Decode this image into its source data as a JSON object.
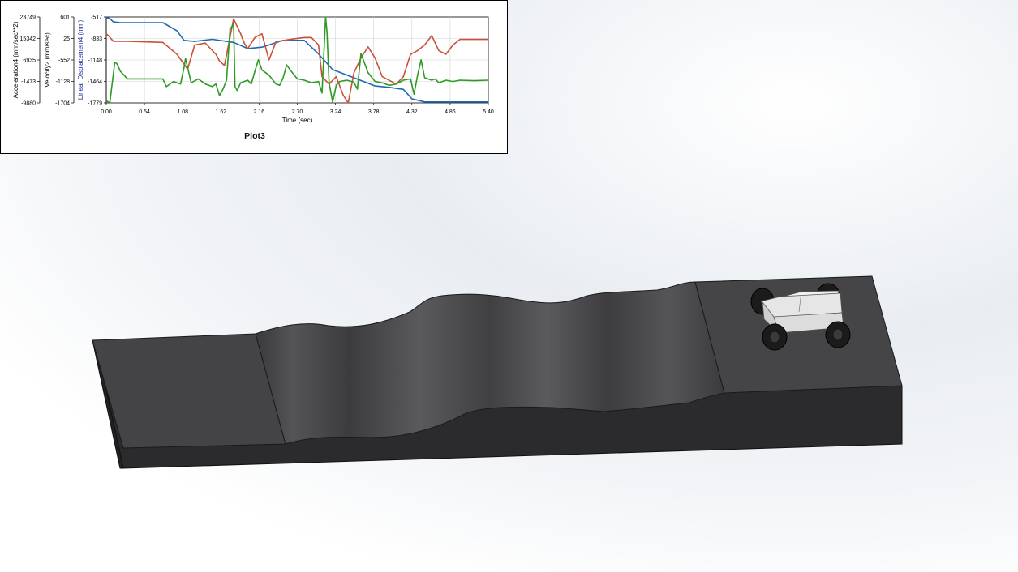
{
  "plot": {
    "title": "Plot3",
    "colors": {
      "accel": "#2e9a23",
      "velocity": "#c9513a",
      "displacement": "#1f68b4"
    },
    "chart_data": {
      "type": "line",
      "title": "Plot3",
      "xlabel": "Time (sec)",
      "xlim": [
        0,
        5.4
      ],
      "x_ticks": [
        "0.00",
        "0.54",
        "1.08",
        "1.62",
        "2.16",
        "2.70",
        "3.24",
        "3.78",
        "4.32",
        "4.86",
        "5.40"
      ],
      "grid": true,
      "axes": [
        {
          "label": "Acceleration4 (mm/sec**2)",
          "ticks": [
            "23749",
            "15342",
            "6935",
            "-1473",
            "-9880"
          ],
          "ylim": [
            -9880,
            23749
          ]
        },
        {
          "label": "Velocity2 (mm/sec)",
          "ticks": [
            "601",
            "25",
            "-552",
            "-1128",
            "-1704"
          ],
          "ylim": [
            -1704,
            601
          ]
        },
        {
          "label": "Linear Displacement4 (mm)",
          "ticks": [
            "-517",
            "-833",
            "-1148",
            "-1464",
            "-1779"
          ],
          "ylim": [
            -1779,
            -517
          ]
        }
      ],
      "series": [
        {
          "axis": 2,
          "x": [
            0,
            0.05,
            0.1,
            0.2,
            0.5,
            0.8,
            1.0,
            1.1,
            1.25,
            1.5,
            1.8,
            2.0,
            2.2,
            2.5,
            2.8,
            3.0,
            3.2,
            3.5,
            3.8,
            4.0,
            4.2,
            4.32,
            4.5,
            4.8,
            5.1,
            5.4
          ],
          "y": [
            -525,
            -540,
            -590,
            -600,
            -600,
            -600,
            -720,
            -860,
            -875,
            -845,
            -890,
            -980,
            -960,
            -860,
            -860,
            -1060,
            -1290,
            -1410,
            -1530,
            -1550,
            -1580,
            -1720,
            -1765,
            -1765,
            -1765,
            -1765
          ]
        },
        {
          "axis": 1,
          "x": [
            0,
            0.03,
            0.1,
            0.3,
            0.8,
            1.0,
            1.15,
            1.25,
            1.4,
            1.55,
            1.6,
            1.67,
            1.8,
            1.9,
            1.95,
            2.0,
            2.1,
            2.2,
            2.3,
            2.4,
            2.6,
            2.8,
            2.9,
            3.0,
            3.05,
            3.15,
            3.25,
            3.35,
            3.42,
            3.5,
            3.6,
            3.7,
            3.8,
            3.9,
            4.1,
            4.2,
            4.3,
            4.4,
            4.5,
            4.6,
            4.65,
            4.7,
            4.8,
            4.9,
            5.0,
            5.2,
            5.4
          ],
          "y": [
            150,
            100,
            -50,
            -50,
            -80,
            -400,
            -800,
            -150,
            -100,
            -400,
            -580,
            -700,
            550,
            150,
            -100,
            -250,
            50,
            150,
            -550,
            -60,
            0,
            50,
            50,
            -150,
            -1000,
            -1200,
            -1000,
            -1500,
            -1704,
            -900,
            -500,
            -200,
            -500,
            -1000,
            -1200,
            -1000,
            -400,
            -300,
            -150,
            100,
            -100,
            -300,
            -400,
            -150,
            0,
            0,
            0
          ]
        },
        {
          "axis": 0,
          "x": [
            0,
            0.05,
            0.08,
            0.12,
            0.15,
            0.2,
            0.3,
            0.5,
            0.8,
            0.85,
            0.95,
            1.05,
            1.1,
            1.12,
            1.2,
            1.3,
            1.4,
            1.5,
            1.55,
            1.6,
            1.65,
            1.7,
            1.75,
            1.8,
            1.82,
            1.85,
            1.9,
            1.95,
            2.0,
            2.05,
            2.1,
            2.15,
            2.2,
            2.3,
            2.4,
            2.45,
            2.5,
            2.55,
            2.6,
            2.7,
            2.8,
            2.9,
            3.0,
            3.05,
            3.1,
            3.12,
            3.15,
            3.2,
            3.25,
            3.3,
            3.4,
            3.5,
            3.55,
            3.6,
            3.7,
            3.8,
            3.9,
            4.0,
            4.1,
            4.2,
            4.3,
            4.35,
            4.4,
            4.45,
            4.5,
            4.6,
            4.65,
            4.7,
            4.8,
            4.9,
            5.0,
            5.2,
            5.4
          ],
          "y": [
            -9000,
            -9880,
            -3000,
            6000,
            5500,
            2500,
            -500,
            -500,
            -500,
            -3500,
            -1500,
            -2500,
            4000,
            7500,
            -2000,
            -500,
            -2500,
            -3500,
            -2500,
            -7000,
            -4500,
            -1000,
            19000,
            21000,
            -3500,
            -5000,
            -2000,
            -1500,
            -1000,
            -2500,
            2500,
            7000,
            3000,
            1000,
            -2500,
            -3000,
            0,
            5000,
            3000,
            -500,
            -1000,
            -2000,
            -1500,
            -6000,
            24000,
            18000,
            -2000,
            -9500,
            -3000,
            -1500,
            -1000,
            -1800,
            -4500,
            9500,
            2000,
            -1500,
            -2000,
            -3000,
            -2500,
            -1000,
            -500,
            -6500,
            1000,
            7000,
            0,
            -1000,
            -500,
            -2000,
            -1000,
            -1500,
            -1000,
            -1200,
            -1000
          ]
        }
      ]
    }
  },
  "scene": {
    "colors": {
      "track_top": "#3f3f41",
      "track_side": "#2a2a2c",
      "car_body": "#e8e8e8",
      "wheel": "#1b1b1c"
    }
  }
}
